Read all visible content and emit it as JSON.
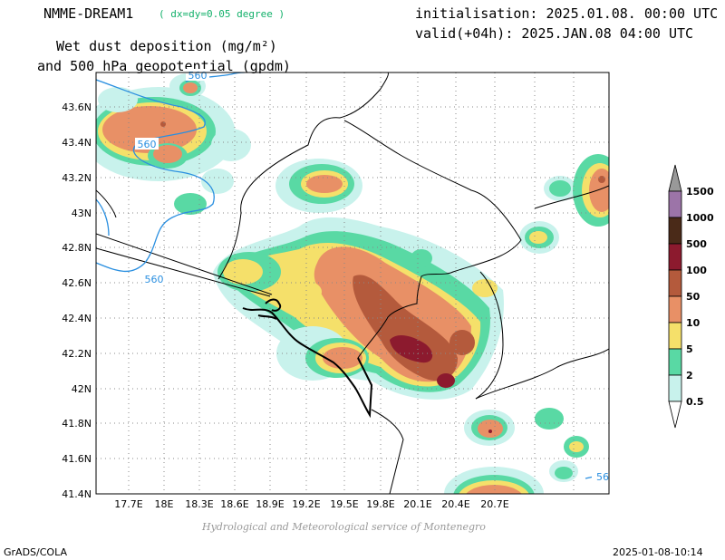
{
  "header": {
    "model": "NMME-DREAM1",
    "resolution": "( dx=dy=0.05 degree )",
    "init": "initialisation: 2025.01.08. 00:00 UTC",
    "valid": "valid(+04h): 2025.JAN.08 04:00 UTC",
    "title_line1": "Wet dust deposition (mg/m²)",
    "title_line2": "and 500 hPa geopotential (gpdm)"
  },
  "map": {
    "lon_ticks": [
      "17.7E",
      "18E",
      "18.3E",
      "18.6E",
      "18.9E",
      "19.2E",
      "19.5E",
      "19.8E",
      "20.1E",
      "20.4E",
      "20.7E"
    ],
    "lat_ticks": [
      "41.4N",
      "41.6N",
      "41.8N",
      "42N",
      "42.2N",
      "42.4N",
      "42.6N",
      "42.8N",
      "43N",
      "43.2N",
      "43.4N",
      "43.6N"
    ],
    "contour_labels": [
      "560",
      "560",
      "560",
      "56"
    ],
    "colors": {
      "c05": "#c8f2ec",
      "c2": "#59d9a4",
      "c5": "#f5e06a",
      "c10": "#e89066",
      "c50": "#b45a3c",
      "c100": "#8c1a2e",
      "c500": "#4a2a18",
      "c1000": "#9c74a8",
      "c1500": "#999999",
      "contour": "#2a8fe0"
    }
  },
  "legend": {
    "labels": [
      "1500",
      "1000",
      "500",
      "100",
      "50",
      "10",
      "5",
      "2",
      "0.5"
    ],
    "colors": [
      "#9c74a8",
      "#4a2a18",
      "#8c1a2e",
      "#b45a3c",
      "#e89066",
      "#f5e06a",
      "#59d9a4",
      "#c8f2ec"
    ]
  },
  "footer": {
    "credit": "Hydrological and Meteorological service of Montenegro",
    "left": "GrADS/COLA",
    "right": "2025-01-08-10:14"
  }
}
